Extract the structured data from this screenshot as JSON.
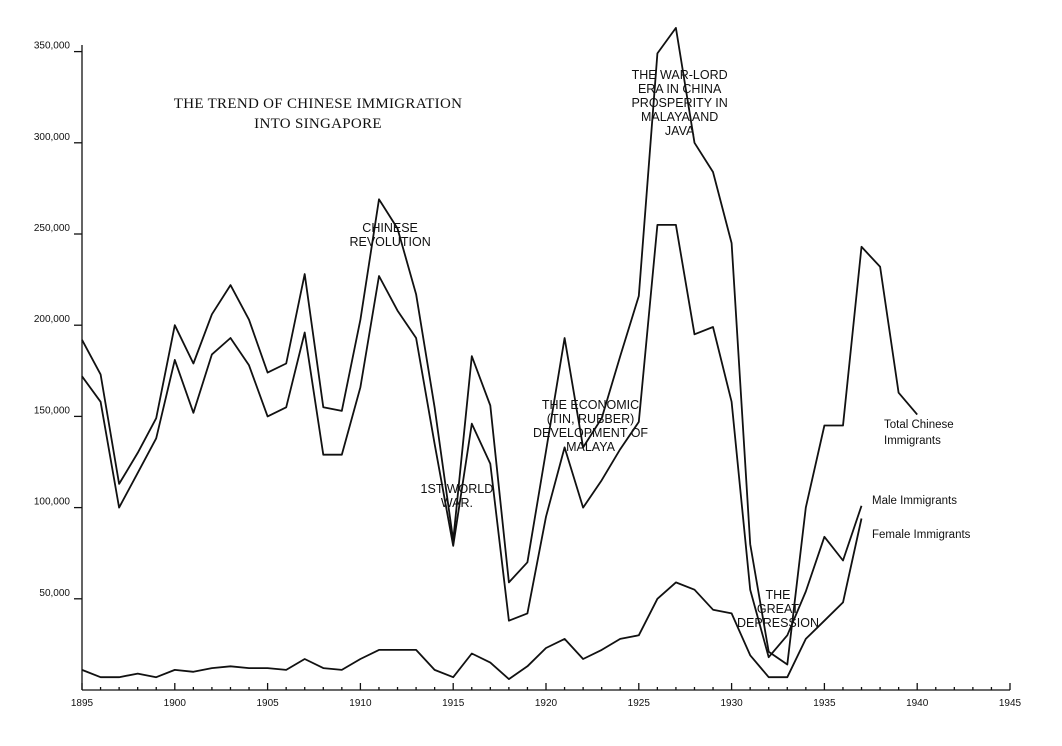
{
  "chart_data": {
    "type": "line",
    "title_lines": [
      "THE TREND OF CHINESE IMMIGRATION",
      "INTO SINGAPORE"
    ],
    "xlabel": "",
    "ylabel": "",
    "xlim": [
      1895,
      1945
    ],
    "ylim": [
      0,
      350000
    ],
    "x_ticks": [
      1895,
      1900,
      1905,
      1910,
      1915,
      1920,
      1925,
      1930,
      1935,
      1940,
      1945
    ],
    "x_tick_labels": [
      "1895",
      "1900",
      "1905",
      "1910",
      "1915",
      "1920",
      "1925",
      "1930",
      "1935",
      "1940",
      "1945"
    ],
    "y_ticks": [
      50000,
      100000,
      150000,
      200000,
      250000,
      300000,
      350000
    ],
    "y_tick_labels": [
      "50,000",
      "100,000",
      "150,000",
      "200,000",
      "250,000",
      "300,000",
      "350,000"
    ],
    "series": [
      {
        "name": "Total Chinese Immigrants",
        "label_lines": [
          "Total Chinese",
          "Immigrants"
        ],
        "x": [
          1895,
          1896,
          1897,
          1898,
          1899,
          1900,
          1901,
          1902,
          1903,
          1904,
          1905,
          1906,
          1907,
          1908,
          1909,
          1910,
          1911,
          1912,
          1913,
          1914,
          1915,
          1916,
          1917,
          1918,
          1919,
          1920,
          1921,
          1922,
          1923,
          1924,
          1925,
          1926,
          1927,
          1928,
          1929,
          1930,
          1931,
          1932,
          1933,
          1934,
          1935,
          1936,
          1937,
          1938,
          1939,
          1940
        ],
        "values": [
          192000,
          173000,
          113000,
          130000,
          149000,
          200000,
          179000,
          206000,
          222000,
          203000,
          174000,
          179000,
          228000,
          155000,
          153000,
          203000,
          269000,
          253000,
          217000,
          155000,
          82000,
          183000,
          156000,
          59000,
          70000,
          131000,
          193000,
          133000,
          149000,
          183000,
          216000,
          349000,
          363000,
          300000,
          284000,
          245000,
          80000,
          21000,
          14000,
          100000,
          145000,
          145000,
          243000,
          232000,
          163000,
          151000
        ]
      },
      {
        "name": "Male Immigrants",
        "label_lines": [
          "Male Immigrants"
        ],
        "x": [
          1895,
          1896,
          1897,
          1898,
          1899,
          1900,
          1901,
          1902,
          1903,
          1904,
          1905,
          1906,
          1907,
          1908,
          1909,
          1910,
          1911,
          1912,
          1913,
          1914,
          1915,
          1916,
          1917,
          1918,
          1919,
          1920,
          1921,
          1922,
          1923,
          1924,
          1925,
          1926,
          1927,
          1928,
          1929,
          1930,
          1931,
          1932,
          1933,
          1934,
          1935,
          1936,
          1937
        ],
        "values": [
          172000,
          158000,
          100000,
          119000,
          138000,
          181000,
          152000,
          184000,
          193000,
          178000,
          150000,
          155000,
          196000,
          129000,
          129000,
          166000,
          227000,
          208000,
          193000,
          135000,
          79000,
          146000,
          124000,
          38000,
          42000,
          95000,
          133000,
          100000,
          115000,
          132000,
          147000,
          255000,
          255000,
          195000,
          199000,
          158000,
          55000,
          18000,
          30000,
          54000,
          84000,
          71000,
          101000
        ]
      },
      {
        "name": "Female Immigrants",
        "label_lines": [
          "Female Immigrants"
        ],
        "x": [
          1895,
          1896,
          1897,
          1898,
          1899,
          1900,
          1901,
          1902,
          1903,
          1904,
          1905,
          1906,
          1907,
          1908,
          1909,
          1910,
          1911,
          1912,
          1913,
          1914,
          1915,
          1916,
          1917,
          1918,
          1919,
          1920,
          1921,
          1922,
          1923,
          1924,
          1925,
          1926,
          1927,
          1928,
          1929,
          1930,
          1931,
          1932,
          1933,
          1934,
          1935,
          1936,
          1937
        ],
        "values": [
          11000,
          7000,
          7000,
          9000,
          7000,
          11000,
          10000,
          12000,
          13000,
          12000,
          12000,
          11000,
          17000,
          12000,
          11000,
          17000,
          22000,
          22000,
          22000,
          11000,
          7000,
          20000,
          15000,
          6000,
          13000,
          23000,
          28000,
          17000,
          22000,
          28000,
          30000,
          50000,
          59000,
          55000,
          44000,
          42000,
          19000,
          7000,
          7000,
          28000,
          38000,
          48000,
          94000
        ]
      }
    ],
    "annotations": [
      {
        "lines": [
          "CHINESE",
          "REVOLUTION"
        ],
        "x": 1911.6,
        "y": 251000
      },
      {
        "lines": [
          "1ST WORLD",
          "WAR."
        ],
        "x": 1915.2,
        "y": 108000
      },
      {
        "lines": [
          "THE ECONOMIC",
          "(TIN, RUBBER)",
          "DEVELOPMENT OF",
          "MALAYA"
        ],
        "x": 1922.4,
        "y": 154000
      },
      {
        "lines": [
          "THE WAR-LORD",
          "ERA IN CHINA",
          "PROSPERITY IN",
          "MALAYA AND",
          "JAVA"
        ],
        "x": 1927.2,
        "y": 335000
      },
      {
        "lines": [
          "THE",
          "GREAT",
          "DEPRESSION"
        ],
        "x": 1932.5,
        "y": 50000
      }
    ],
    "grid": false,
    "legend_placement": "inline labels at right end of each series"
  }
}
